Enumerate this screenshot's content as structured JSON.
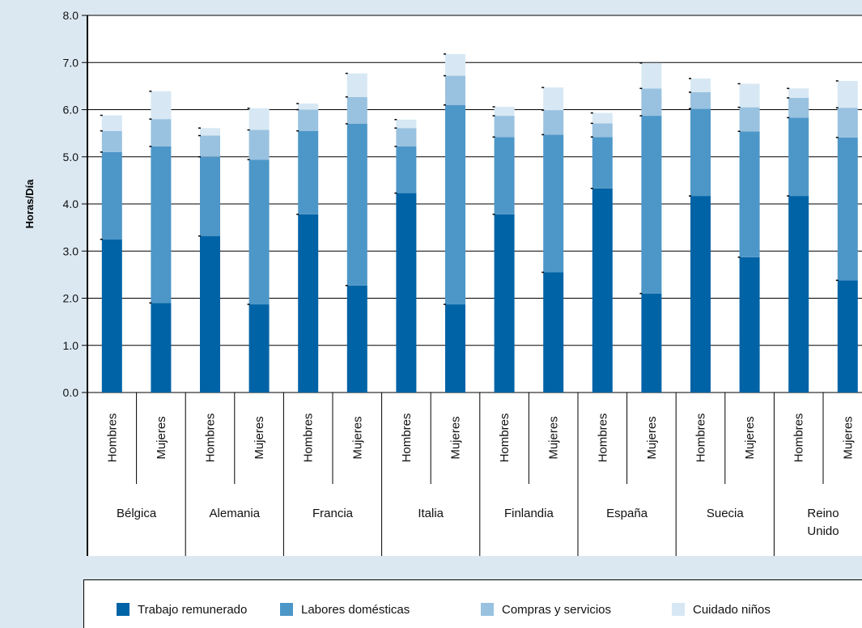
{
  "chart_data": {
    "type": "bar",
    "stacked": true,
    "ylabel": "Horas/Día",
    "ylim": [
      0,
      8
    ],
    "yticks": [
      "0.0",
      "1.0",
      "2.0",
      "3.0",
      "4.0",
      "5.0",
      "6.0",
      "7.0",
      "8.0"
    ],
    "groups": [
      "Bélgica",
      "Alemania",
      "Francia",
      "Italia",
      "Finlandia",
      "España",
      "Suecia",
      "Reino Unido"
    ],
    "categories": [
      "Hombres",
      "Mujeres",
      "Hombres",
      "Mujeres",
      "Hombres",
      "Mujeres",
      "Hombres",
      "Mujeres",
      "Hombres",
      "Mujeres",
      "Hombres",
      "Mujeres",
      "Hombres",
      "Mujeres",
      "Hombres",
      "Mujeres"
    ],
    "series": [
      {
        "name": "Trabajo remunerado",
        "color": "#0063a6",
        "values": [
          3.25,
          1.9,
          3.32,
          1.87,
          3.78,
          2.27,
          4.23,
          1.87,
          3.78,
          2.55,
          4.33,
          2.1,
          4.17,
          2.87,
          4.17,
          2.38
        ]
      },
      {
        "name": "Labores domésticas",
        "color": "#4d97c8",
        "values": [
          1.85,
          3.32,
          1.68,
          3.07,
          1.77,
          3.43,
          0.99,
          4.23,
          1.64,
          2.92,
          1.09,
          3.77,
          1.85,
          2.67,
          1.66,
          3.03
        ]
      },
      {
        "name": "Compras y servicios",
        "color": "#99c2e0",
        "values": [
          0.45,
          0.58,
          0.45,
          0.63,
          0.45,
          0.57,
          0.39,
          0.62,
          0.45,
          0.52,
          0.29,
          0.58,
          0.35,
          0.51,
          0.42,
          0.63
        ]
      },
      {
        "name": "Cuidado niños",
        "color": "#d7e8f4",
        "values": [
          0.33,
          0.59,
          0.16,
          0.46,
          0.13,
          0.5,
          0.18,
          0.46,
          0.19,
          0.48,
          0.22,
          0.54,
          0.29,
          0.5,
          0.2,
          0.57
        ]
      }
    ],
    "legend_position": "bottom",
    "grid": true
  }
}
